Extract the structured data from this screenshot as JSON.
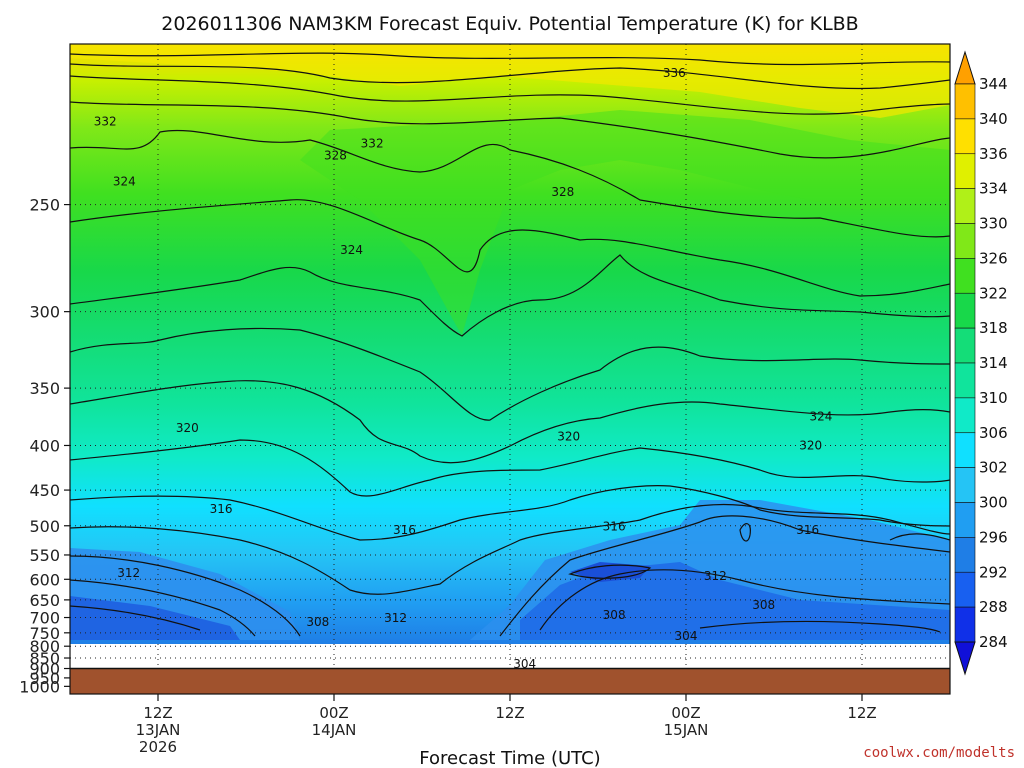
{
  "chart_data": {
    "type": "heatmap",
    "title": "2026011306 NAM3KM Forecast Equiv. Potential Temperature (K) for KLBB",
    "xlabel": "Forecast Time (UTC)",
    "ylabel": "",
    "x_ticks": [
      {
        "hour": 6,
        "lines": [
          "12Z",
          "13JAN",
          "2026"
        ]
      },
      {
        "hour": 18,
        "lines": [
          "00Z",
          "14JAN"
        ]
      },
      {
        "hour": 30,
        "lines": [
          "12Z"
        ]
      },
      {
        "hour": 42,
        "lines": [
          "00Z",
          "15JAN"
        ]
      },
      {
        "hour": 54,
        "lines": [
          "12Z"
        ]
      }
    ],
    "xlim_hours": [
      0,
      60
    ],
    "y_ticks": [
      250,
      300,
      350,
      400,
      450,
      500,
      550,
      600,
      650,
      700,
      750,
      800,
      850,
      900,
      950,
      1000
    ],
    "ylim_hpa": [
      200,
      1050
    ],
    "ground_level_hpa": 900,
    "colorbar": {
      "levels": [
        284,
        288,
        292,
        296,
        300,
        302,
        306,
        310,
        314,
        318,
        322,
        326,
        330,
        334,
        336,
        340,
        344
      ],
      "colors": [
        "#1010d8",
        "#1030e8",
        "#1860f0",
        "#1f7ee6",
        "#209ef2",
        "#25c4f5",
        "#10e0ff",
        "#10eac8",
        "#10e49c",
        "#14dd78",
        "#18d84a",
        "#40e020",
        "#80e818",
        "#b0f018",
        "#e0f000",
        "#ffe000",
        "#ffc000",
        "#ffa000"
      ]
    },
    "isotherm_labels": [
      {
        "text": "336",
        "hour": 41.2,
        "hpa": 208
      },
      {
        "text": "332",
        "hour": 2.4,
        "hpa": 222
      },
      {
        "text": "332",
        "hour": 20.6,
        "hpa": 229
      },
      {
        "text": "328",
        "hour": 18.1,
        "hpa": 233
      },
      {
        "text": "324",
        "hour": 3.7,
        "hpa": 242
      },
      {
        "text": "328",
        "hour": 33.6,
        "hpa": 246
      },
      {
        "text": "324",
        "hour": 19.2,
        "hpa": 270
      },
      {
        "text": "324",
        "hour": 51.2,
        "hpa": 375
      },
      {
        "text": "320",
        "hour": 8.0,
        "hpa": 385
      },
      {
        "text": "320",
        "hour": 34.0,
        "hpa": 393
      },
      {
        "text": "320",
        "hour": 50.5,
        "hpa": 402
      },
      {
        "text": "316",
        "hour": 10.3,
        "hpa": 478
      },
      {
        "text": "316",
        "hour": 22.8,
        "hpa": 510
      },
      {
        "text": "316",
        "hour": 37.1,
        "hpa": 504
      },
      {
        "text": "316",
        "hour": 50.3,
        "hpa": 510
      },
      {
        "text": "312",
        "hour": 4.0,
        "hpa": 590
      },
      {
        "text": "312",
        "hour": 44.0,
        "hpa": 597
      },
      {
        "text": "308",
        "hour": 47.3,
        "hpa": 669
      },
      {
        "text": "308",
        "hour": 37.1,
        "hpa": 699
      },
      {
        "text": "312",
        "hour": 22.2,
        "hpa": 708
      },
      {
        "text": "308",
        "hour": 16.9,
        "hpa": 720
      },
      {
        "text": "304",
        "hour": 42.0,
        "hpa": 768
      },
      {
        "text": "304",
        "hour": 31.0,
        "hpa": 887
      }
    ]
  },
  "credit": "coolwx.com/modelts"
}
